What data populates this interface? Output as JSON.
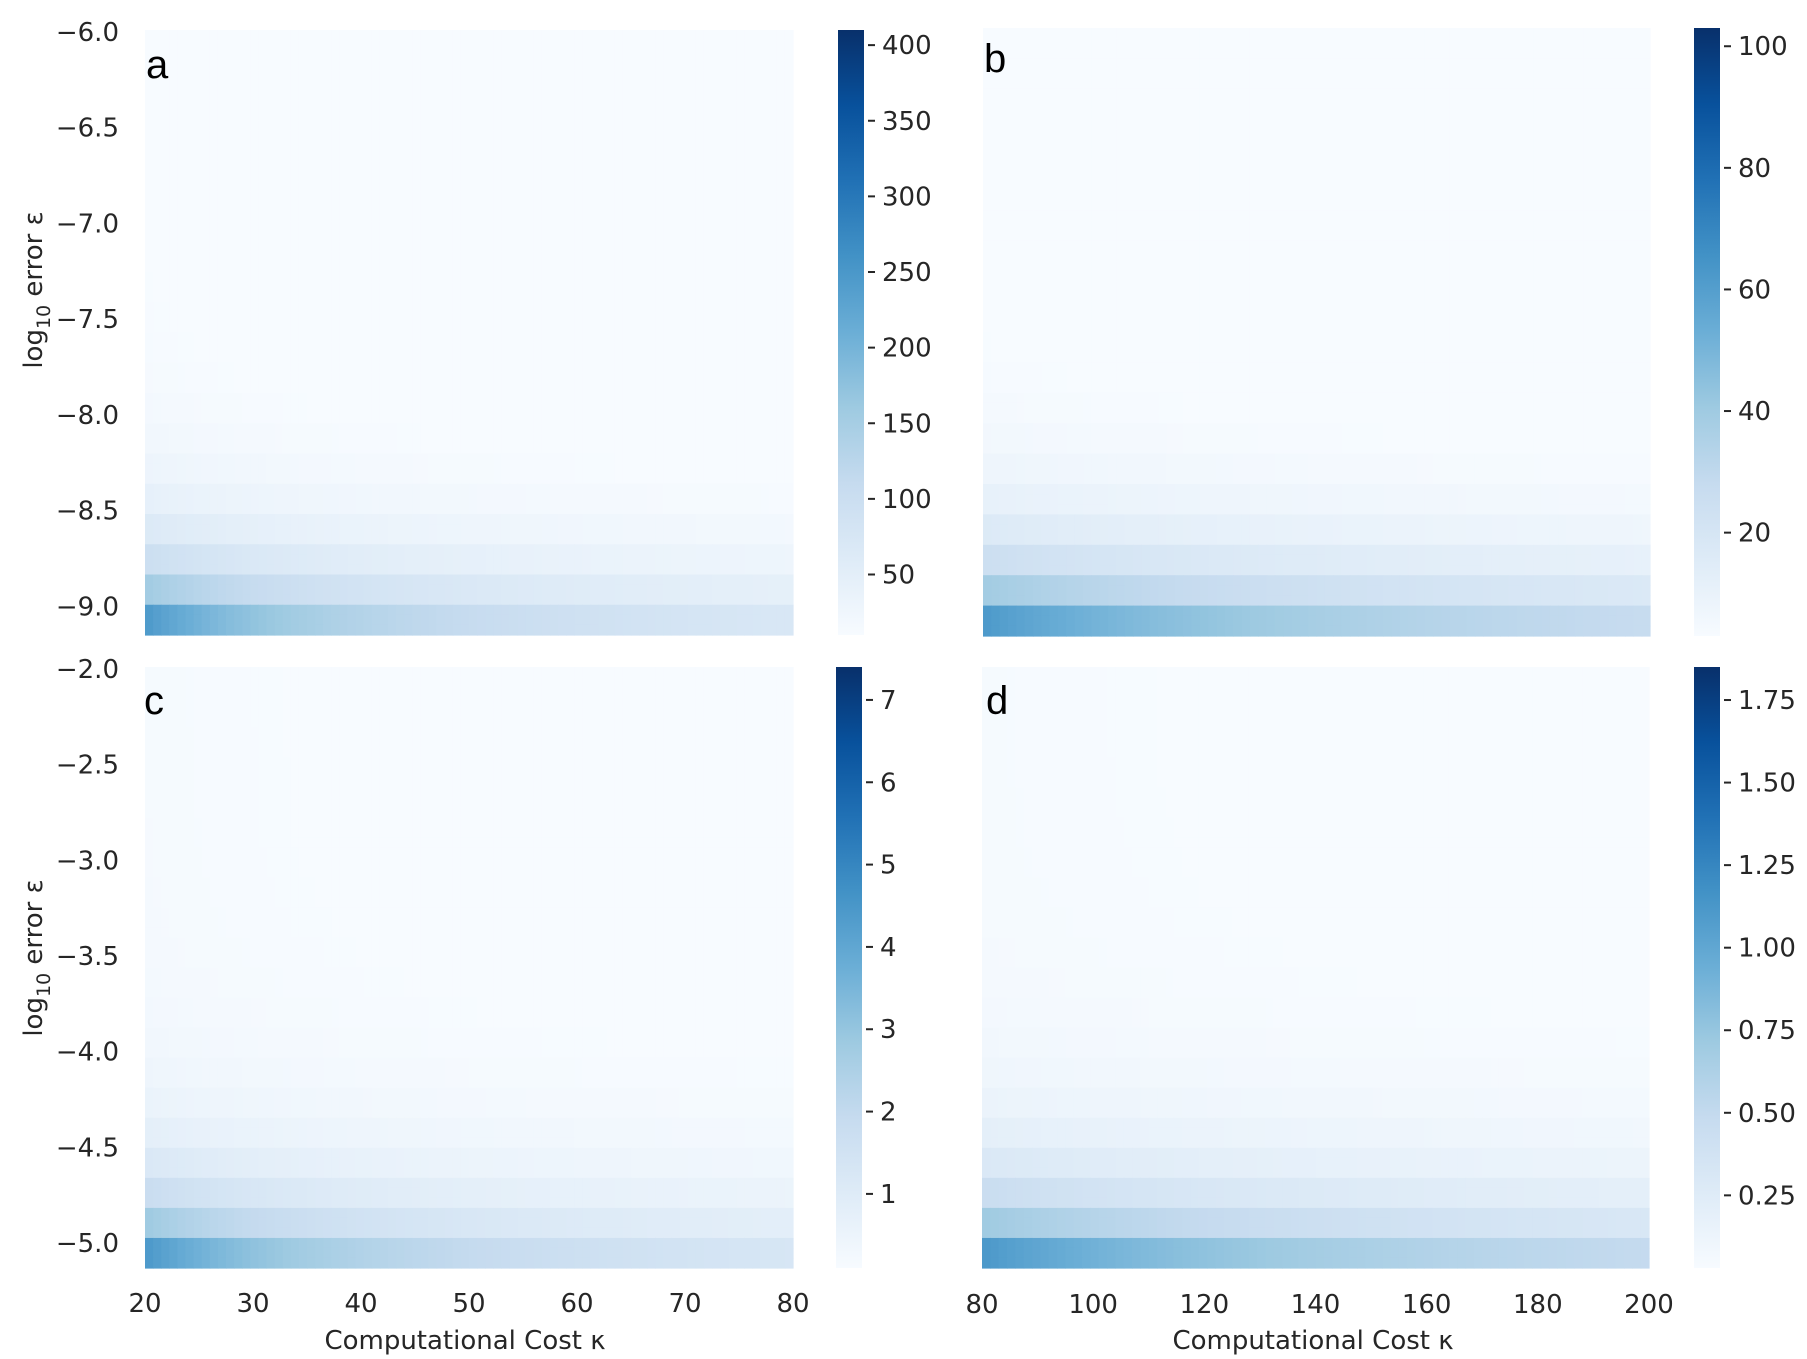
{
  "chart_data": [
    {
      "type": "heatmap",
      "panel_label": "a",
      "title": "",
      "xlabel": "",
      "ylabel": "log10 error ε",
      "ylabel_parts": {
        "base": "log",
        "subscript": "10",
        "rest": " error ε"
      },
      "x_range": [
        20,
        80
      ],
      "x_ticks": [],
      "y_range": [
        -9.15,
        -5.99
      ],
      "y_ticks": [
        -6.0,
        -6.5,
        -7.0,
        -7.5,
        -8.0,
        -8.5,
        -9.0
      ],
      "y_tick_labels": [
        "−6.0",
        "−6.5",
        "−7.0",
        "−7.5",
        "−8.0",
        "−8.5",
        "−9.0"
      ],
      "colormap": "Blues",
      "grid": false,
      "colorbar": {
        "range": [
          10,
          410
        ],
        "ticks": [
          400,
          350,
          300,
          250,
          200,
          150,
          100,
          50
        ],
        "tick_labels": [
          "400",
          "350",
          "300",
          "250",
          "200",
          "150",
          "100",
          "50"
        ]
      },
      "model": "value(x, y) = 410 * (0.58 * 2^((y_min - y)/0.225) + 0.025) * (20/x)^0.9"
    },
    {
      "type": "heatmap",
      "panel_label": "b",
      "title": "",
      "xlabel": "",
      "ylabel": "",
      "x_range": [
        80,
        200
      ],
      "x_ticks": [],
      "y_range": [
        -9.15,
        -5.99
      ],
      "y_ticks": [],
      "colormap": "Blues",
      "grid": false,
      "colorbar": {
        "range": [
          3,
          103
        ],
        "ticks": [
          100,
          80,
          60,
          40,
          20
        ],
        "tick_labels": [
          "100",
          "80",
          "60",
          "40",
          "20"
        ]
      },
      "model": "value(x, y) = 103 * (0.58 * 2^((y_min - y)/0.225) + 0.025) * (80/x)^0.9"
    },
    {
      "type": "heatmap",
      "panel_label": "c",
      "title": "",
      "xlabel": "Computational Cost κ",
      "ylabel": "log10 error ε",
      "ylabel_parts": {
        "base": "log",
        "subscript": "10",
        "rest": " error ε"
      },
      "x_range": [
        20,
        80
      ],
      "x_ticks": [
        20,
        30,
        40,
        50,
        60,
        70,
        80
      ],
      "x_tick_labels": [
        "20",
        "30",
        "40",
        "50",
        "60",
        "70",
        "80"
      ],
      "y_range": [
        -5.13,
        -1.99
      ],
      "y_ticks": [
        -2.0,
        -2.5,
        -3.0,
        -3.5,
        -4.0,
        -4.5,
        -5.0
      ],
      "y_tick_labels": [
        "−2.0",
        "−2.5",
        "−3.0",
        "−3.5",
        "−4.0",
        "−4.5",
        "−5.0"
      ],
      "colormap": "Blues",
      "grid": false,
      "colorbar": {
        "range": [
          0.1,
          7.4
        ],
        "ticks": [
          7,
          6,
          5,
          4,
          3,
          2,
          1
        ],
        "tick_labels": [
          "7",
          "6",
          "5",
          "4",
          "3",
          "2",
          "1"
        ]
      },
      "model": "value(x, y) = 7.4 * (0.58 * 2^((y_min - y)/0.225) + 0.025) * (20/x)^0.9"
    },
    {
      "type": "heatmap",
      "panel_label": "d",
      "title": "",
      "xlabel": "Computational Cost κ",
      "ylabel": "",
      "x_range": [
        80,
        200
      ],
      "x_ticks": [
        80,
        100,
        120,
        140,
        160,
        180,
        200
      ],
      "x_tick_labels": [
        "80",
        "100",
        "120",
        "140",
        "160",
        "180",
        "200"
      ],
      "y_range": [
        -5.13,
        -1.99
      ],
      "y_ticks": [],
      "colormap": "Blues",
      "grid": false,
      "colorbar": {
        "range": [
          0.03,
          1.85
        ],
        "ticks": [
          1.75,
          1.5,
          1.25,
          1.0,
          0.75,
          0.5,
          0.25
        ],
        "tick_labels": [
          "1.75",
          "1.50",
          "1.25",
          "1.00",
          "0.75",
          "0.50",
          "0.25"
        ]
      },
      "model": "value(x, y) = 1.85 * (0.58 * 2^((y_min - y)/0.225) + 0.025) * (80/x)^0.9"
    }
  ]
}
